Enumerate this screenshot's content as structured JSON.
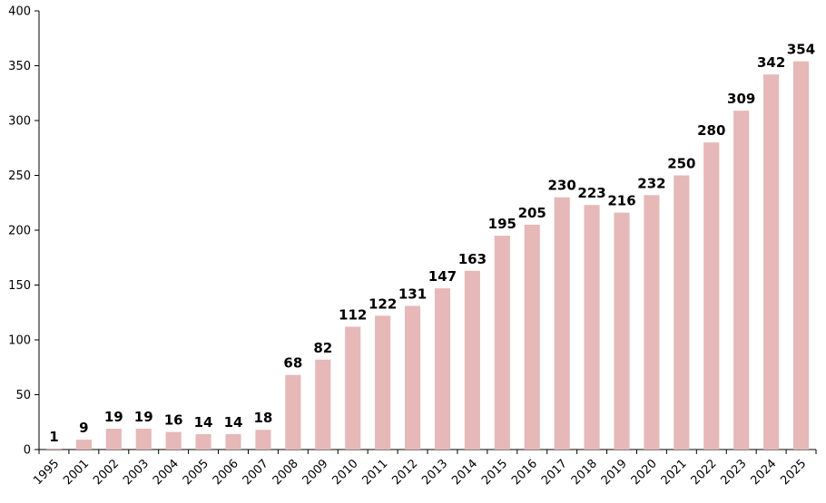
{
  "chart_data": {
    "type": "bar",
    "title": "",
    "xlabel": "",
    "ylabel": "",
    "ylim": [
      0,
      400
    ],
    "yticks": [
      0,
      50,
      100,
      150,
      200,
      250,
      300,
      350,
      400
    ],
    "grid": false,
    "bar_color": "#e6b8b7",
    "categories": [
      "1995",
      "2001",
      "2002",
      "2003",
      "2004",
      "2005",
      "2006",
      "2007",
      "2008",
      "2009",
      "2010",
      "2011",
      "2012",
      "2013",
      "2014",
      "2015",
      "2016",
      "2017",
      "2018",
      "2019",
      "2020",
      "2021",
      "2022",
      "2023",
      "2024",
      "2025"
    ],
    "series": [
      {
        "values": [
          1,
          9,
          19,
          19,
          16,
          14,
          14,
          18,
          68,
          82,
          112,
          122,
          131,
          147,
          163,
          195,
          205,
          230,
          223,
          216,
          232,
          250,
          280,
          309,
          342,
          354
        ]
      }
    ]
  }
}
